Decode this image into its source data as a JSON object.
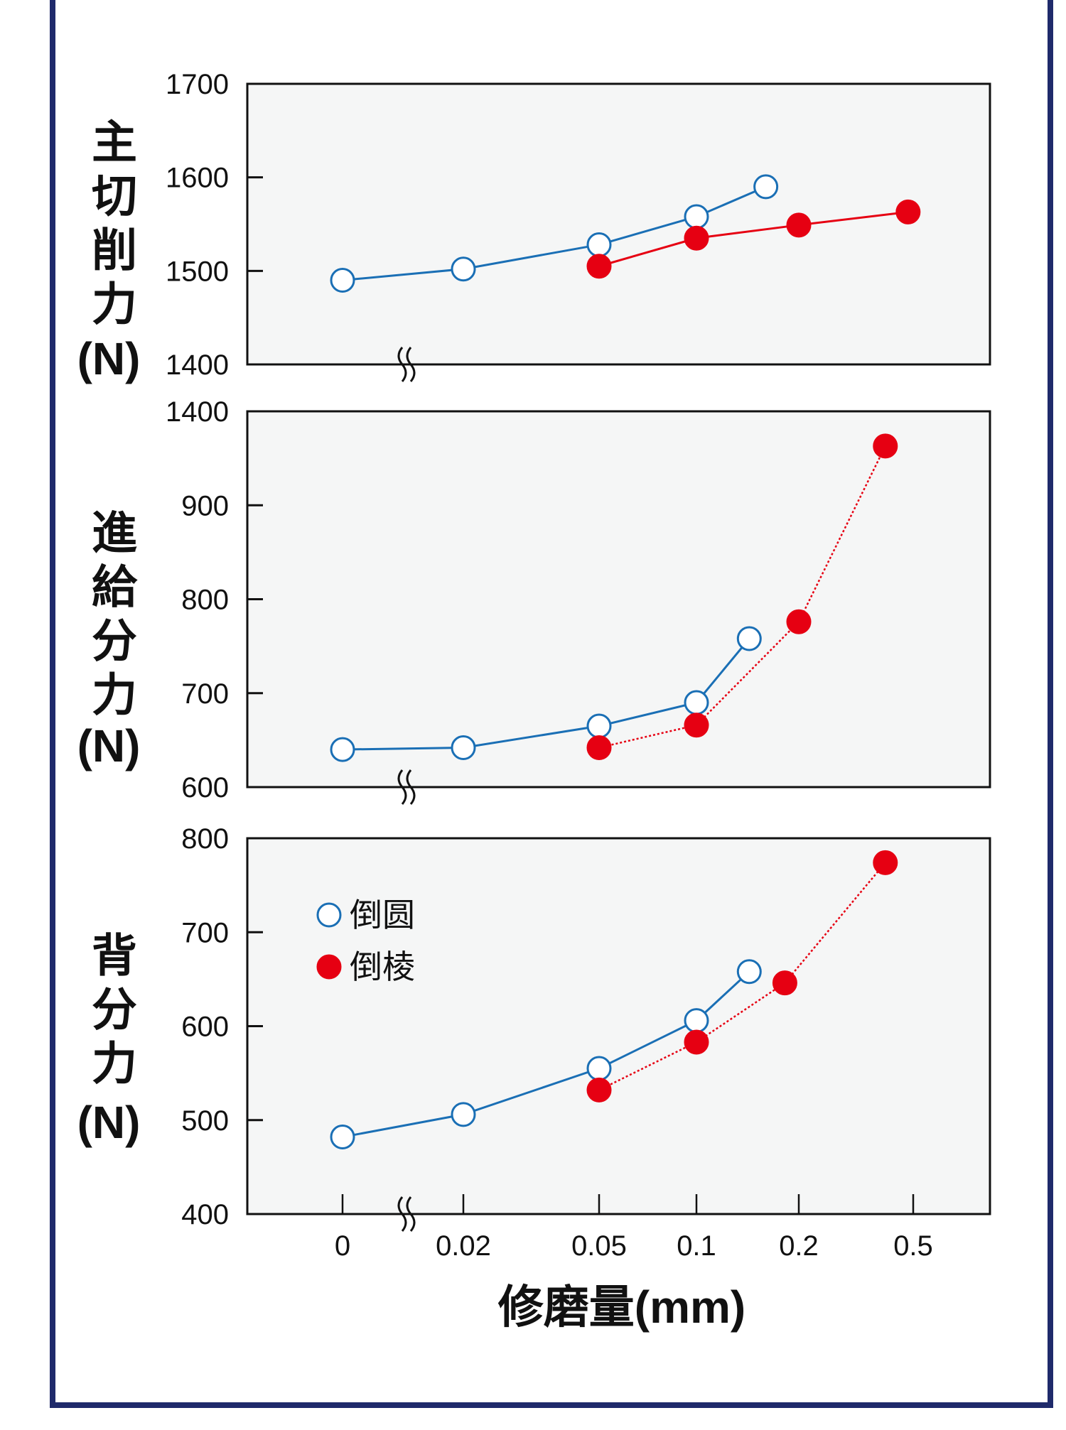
{
  "colors": {
    "round": "#1a6fb5",
    "chamfer": "#e60012",
    "plot_bg": "#f5f6f6",
    "frame": "#1f2a6b"
  },
  "chart_data": [
    {
      "type": "line",
      "ylabel": "主切削力",
      "yunit": "(N)",
      "yticks": [
        1400,
        1500,
        1600,
        1700
      ],
      "ylim": [
        1400,
        1700
      ],
      "series": [
        {
          "name": "倒圆",
          "style": "solid",
          "marker": "open",
          "x": [
            0,
            0.02,
            0.05,
            0.1,
            0.16
          ],
          "y": [
            1490,
            1502,
            1528,
            1558,
            1590
          ]
        },
        {
          "name": "倒棱",
          "style": "solid",
          "marker": "filled",
          "x": [
            0.05,
            0.1,
            0.2,
            0.48
          ],
          "y": [
            1505,
            1535,
            1549,
            1563
          ]
        }
      ]
    },
    {
      "type": "line",
      "ylabel": "進給分力",
      "yunit": "(N)",
      "yticks": [
        600,
        700,
        800,
        900,
        1400
      ],
      "ylim": [
        600,
        1400
      ],
      "series": [
        {
          "name": "倒圆",
          "style": "solid",
          "marker": "open",
          "x": [
            0,
            0.02,
            0.05,
            0.1,
            0.143
          ],
          "y": [
            640,
            642,
            665,
            690,
            758
          ]
        },
        {
          "name": "倒棱",
          "style": "dotted",
          "marker": "filled",
          "x": [
            0.05,
            0.1,
            0.2,
            0.4
          ],
          "y": [
            642,
            666,
            776,
            1215
          ]
        }
      ]
    },
    {
      "type": "line",
      "ylabel": "背分力",
      "yunit": "(N)",
      "yticks": [
        400,
        500,
        600,
        700,
        800
      ],
      "ylim": [
        400,
        800
      ],
      "xlabel": "修磨量(mm)",
      "xticks": [
        "0",
        "0.02",
        "0.05",
        "0.1",
        "0.2",
        "0.5"
      ],
      "legend": {
        "placement": "top-left",
        "entries": [
          "倒圆",
          "倒棱"
        ]
      },
      "series": [
        {
          "name": "倒圆",
          "style": "solid",
          "marker": "open",
          "x": [
            0,
            0.02,
            0.05,
            0.1,
            0.143
          ],
          "y": [
            482,
            506,
            555,
            606,
            658
          ]
        },
        {
          "name": "倒棱",
          "style": "dotted",
          "marker": "filled",
          "x": [
            0.05,
            0.1,
            0.182,
            0.4
          ],
          "y": [
            532,
            583,
            646,
            774
          ]
        }
      ]
    }
  ]
}
